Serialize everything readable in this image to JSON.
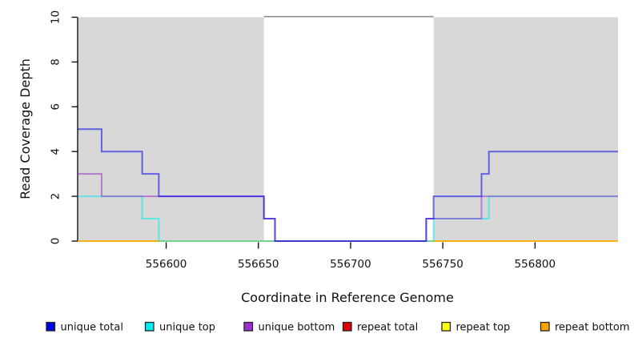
{
  "chart_data": {
    "type": "line",
    "title": "",
    "xlabel": "Coordinate in Reference Genome",
    "ylabel": "Read Coverage Depth",
    "xlim": [
      556552,
      556845
    ],
    "ylim": [
      0,
      10
    ],
    "x_ticks": [
      556600,
      556650,
      556700,
      556750,
      556800
    ],
    "y_ticks": [
      0,
      2,
      4,
      6,
      8,
      10
    ],
    "grid": false,
    "legend_position": "bottom",
    "line_style": "step-after",
    "line_opacity": 0.55,
    "line_width": 2,
    "highlight_regions": [
      {
        "x_start": 556552,
        "x_end": 556653,
        "fill": "#D8D8D8"
      },
      {
        "x_start": 556745,
        "x_end": 556845,
        "fill": "#D8D8D8"
      }
    ],
    "gap_top_line": {
      "x_start": 556653,
      "x_end": 556745,
      "depth": 10,
      "color": "#8E8E8E"
    },
    "series": [
      {
        "name": "unique total",
        "color": "#0000EE",
        "points": [
          [
            556552,
            5
          ],
          [
            556565,
            4
          ],
          [
            556587,
            3
          ],
          [
            556596,
            2
          ],
          [
            556653,
            1
          ],
          [
            556659,
            0
          ],
          [
            556741,
            1
          ],
          [
            556745,
            2
          ],
          [
            556771,
            3
          ],
          [
            556775,
            4
          ],
          [
            556845,
            4
          ]
        ]
      },
      {
        "name": "unique top",
        "color": "#00EEEE",
        "points": [
          [
            556552,
            2
          ],
          [
            556587,
            1
          ],
          [
            556596,
            0
          ],
          [
            556745,
            1
          ],
          [
            556775,
            2
          ],
          [
            556845,
            2
          ]
        ]
      },
      {
        "name": "unique bottom",
        "color": "#9932CC",
        "points": [
          [
            556552,
            3
          ],
          [
            556565,
            2
          ],
          [
            556653,
            1
          ],
          [
            556659,
            0
          ],
          [
            556741,
            1
          ],
          [
            556771,
            2
          ],
          [
            556845,
            2
          ]
        ]
      },
      {
        "name": "repeat total",
        "color": "#E00000",
        "points": [
          [
            556552,
            0
          ],
          [
            556845,
            0
          ]
        ]
      },
      {
        "name": "repeat top",
        "color": "#FFFF00",
        "points": [
          [
            556552,
            0
          ],
          [
            556845,
            0
          ]
        ]
      },
      {
        "name": "repeat bottom",
        "color": "#FFA500",
        "points": [
          [
            556552,
            0
          ],
          [
            556845,
            0
          ]
        ]
      }
    ],
    "draw_order": [
      "repeat total",
      "repeat top",
      "repeat bottom",
      "unique top",
      "unique bottom",
      "unique total"
    ]
  },
  "colors": {
    "background": "#FFFFFF",
    "axis": "#000000",
    "region_fill": "#D8D8D8",
    "gap_line": "#8E8E8E",
    "legend_swatch_border": "#222222"
  }
}
